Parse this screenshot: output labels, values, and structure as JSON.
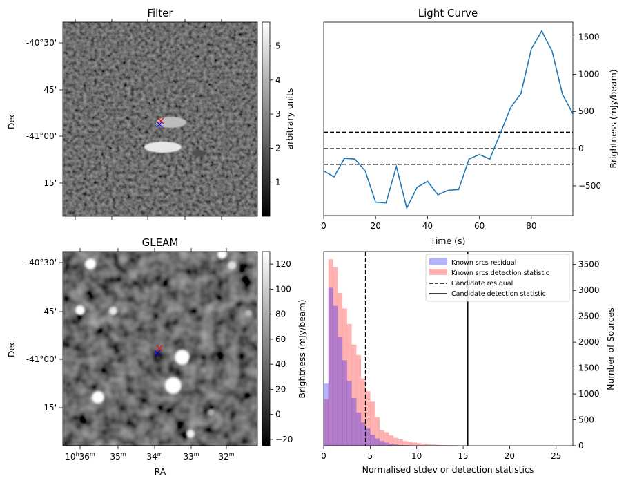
{
  "chart_data": [
    {
      "type": "heatmap",
      "title": "Filter",
      "xlabel": "",
      "ylabel": "Dec",
      "y_ticks": [
        "-40°30'",
        "45'",
        "-41°00'",
        "15'"
      ],
      "colorbar": {
        "label": "arbitrary units",
        "range": [
          0,
          5.7
        ],
        "ticks": [
          1,
          2,
          3,
          4,
          5
        ],
        "colormap": "gray"
      },
      "markers": [
        {
          "symbol": "x",
          "color": "#ff0000"
        },
        {
          "symbol": "x",
          "color": "#0000ff"
        }
      ]
    },
    {
      "type": "line",
      "title": "Light Curve",
      "xlabel": "Time (s)",
      "ylabel": "Brightness (mJy/beam)",
      "xlim": [
        0,
        96
      ],
      "ylim": [
        -900,
        1700
      ],
      "x_ticks": [
        0,
        20,
        40,
        60,
        80
      ],
      "y_ticks": [
        -500,
        0,
        500,
        1000,
        1500
      ],
      "series": [
        {
          "color": "#1f77b4",
          "x": [
            0,
            4,
            8,
            12,
            16,
            20,
            24,
            28,
            32,
            36,
            40,
            44,
            48,
            52,
            56,
            60,
            64,
            68,
            72,
            76,
            80,
            84,
            88,
            92,
            96
          ],
          "y": [
            -300,
            -380,
            -130,
            -140,
            -300,
            -720,
            -730,
            -240,
            -800,
            -520,
            -440,
            -620,
            -560,
            -550,
            -140,
            -80,
            -140,
            200,
            550,
            740,
            1340,
            1580,
            1310,
            730,
            470
          ]
        }
      ],
      "hlines": [
        {
          "y": 220,
          "style": "dashed",
          "color": "#000000"
        },
        {
          "y": 0,
          "style": "dashed",
          "color": "#000000"
        },
        {
          "y": -210,
          "style": "dashed",
          "color": "#000000"
        }
      ]
    },
    {
      "type": "heatmap",
      "title": "GLEAM",
      "xlabel": "RA",
      "ylabel": "Dec",
      "x_ticks": [
        "10h36m",
        "35m",
        "34m",
        "33m",
        "32m"
      ],
      "y_ticks": [
        "-40°30'",
        "45'",
        "-41°00'",
        "15'"
      ],
      "colorbar": {
        "label": "Brightness (mJy/beam)",
        "range": [
          -25,
          130
        ],
        "ticks": [
          -20,
          0,
          20,
          40,
          60,
          80,
          100,
          120
        ],
        "colormap": "gray"
      },
      "markers": [
        {
          "symbol": "x",
          "color": "#ff0000"
        },
        {
          "symbol": "x",
          "color": "#0000ff"
        }
      ]
    },
    {
      "type": "bar",
      "title": "",
      "xlabel": "Normalised stdev or detection statistics",
      "ylabel": "Number of Sources",
      "xlim": [
        0,
        26.8
      ],
      "ylim": [
        0,
        3750
      ],
      "x_ticks": [
        0,
        5,
        10,
        15,
        20,
        25
      ],
      "y_ticks": [
        0,
        500,
        1000,
        1500,
        2000,
        2500,
        3000,
        3500
      ],
      "bin_width": 0.5,
      "legend_position": "top-right",
      "series": [
        {
          "name": "Known srcs residual",
          "color": "#0000ff",
          "alpha": 0.3,
          "bins_start": 0,
          "values": [
            1200,
            3050,
            2700,
            2100,
            1650,
            1250,
            920,
            640,
            450,
            330,
            210,
            140,
            90,
            60,
            40,
            25,
            15,
            10,
            6,
            4,
            3,
            2
          ]
        },
        {
          "name": "Known srcs detection statistic",
          "color": "#ff0000",
          "alpha": 0.3,
          "bins_start": 0,
          "values": [
            900,
            3600,
            3450,
            2950,
            2650,
            2350,
            1950,
            1750,
            1300,
            1050,
            850,
            550,
            300,
            260,
            200,
            150,
            120,
            90,
            80,
            60,
            50,
            40,
            30,
            25,
            20,
            15,
            12,
            10,
            8,
            6,
            5,
            4,
            3,
            3,
            2,
            2,
            2,
            2,
            1,
            1,
            1,
            1,
            1,
            1,
            1,
            1,
            1,
            1,
            1,
            1,
            1,
            1
          ]
        }
      ],
      "vlines": [
        {
          "name": "Candidate residual",
          "x": 4.5,
          "style": "dashed",
          "color": "#000000"
        },
        {
          "name": "Candidate detection statistic",
          "x": 15.5,
          "style": "solid",
          "color": "#000000"
        }
      ]
    }
  ]
}
